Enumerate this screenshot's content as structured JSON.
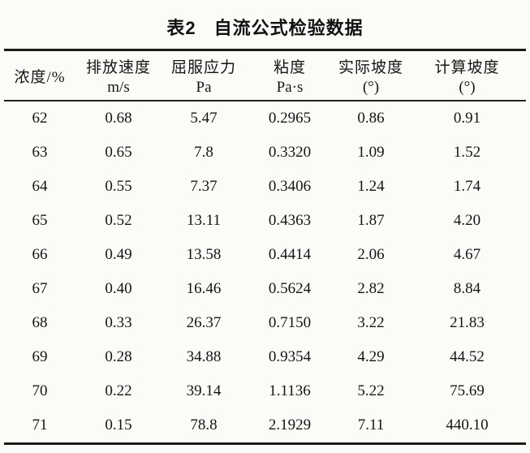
{
  "page": {
    "background_color": "#fbfbf8",
    "ink_color": "#161616",
    "rule_color": "#1a1a1a"
  },
  "title": {
    "label": "表2",
    "caption": "自流公式检验数据"
  },
  "table": {
    "columns": [
      {
        "name": "浓度/%",
        "unit": ""
      },
      {
        "name": "排放速度",
        "unit": "m/s"
      },
      {
        "name": "屈服应力",
        "unit": "Pa"
      },
      {
        "name": "粘度",
        "unit": "Pa·s"
      },
      {
        "name": "实际坡度",
        "unit": "(°)"
      },
      {
        "name": "计算坡度",
        "unit": "(°)"
      }
    ],
    "rows": [
      [
        "62",
        "0.68",
        "5.47",
        "0.2965",
        "0.86",
        "0.91"
      ],
      [
        "63",
        "0.65",
        "7.8",
        "0.3320",
        "1.09",
        "1.52"
      ],
      [
        "64",
        "0.55",
        "7.37",
        "0.3406",
        "1.24",
        "1.74"
      ],
      [
        "65",
        "0.52",
        "13.11",
        "0.4363",
        "1.87",
        "4.20"
      ],
      [
        "66",
        "0.49",
        "13.58",
        "0.4414",
        "2.06",
        "4.67"
      ],
      [
        "67",
        "0.40",
        "16.46",
        "0.5624",
        "2.82",
        "8.84"
      ],
      [
        "68",
        "0.33",
        "26.37",
        "0.7150",
        "3.22",
        "21.83"
      ],
      [
        "69",
        "0.28",
        "34.88",
        "0.9354",
        "4.29",
        "44.52"
      ],
      [
        "70",
        "0.22",
        "39.14",
        "1.1136",
        "5.22",
        "75.69"
      ],
      [
        "71",
        "0.15",
        "78.8",
        "2.1929",
        "7.11",
        "440.10"
      ]
    ]
  }
}
